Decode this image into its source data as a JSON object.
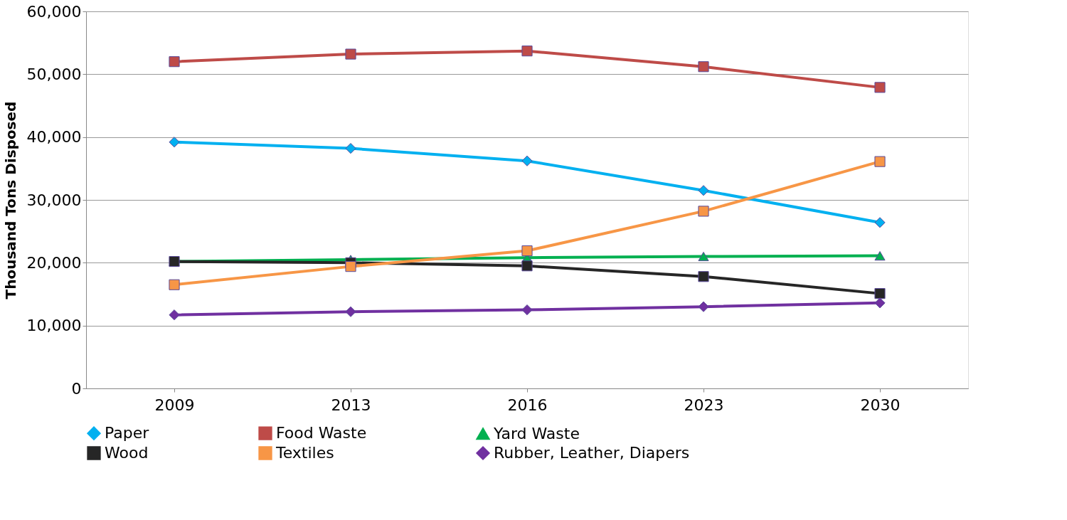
{
  "chart_data": {
    "type": "line",
    "ylabel": "Thousand Tons Disposed",
    "categories": [
      "2009",
      "2013",
      "2016",
      "2023",
      "2030"
    ],
    "series": [
      {
        "name": "Paper",
        "color": "#00b0f0",
        "marker": "diamond",
        "values": [
          39200,
          38200,
          36200,
          31500,
          26400
        ]
      },
      {
        "name": "Food Waste",
        "color": "#be4b48",
        "marker": "square",
        "values": [
          52000,
          53200,
          53700,
          51200,
          47900
        ]
      },
      {
        "name": "Yard Waste",
        "color": "#00b050",
        "marker": "triangle",
        "values": [
          20200,
          20500,
          20800,
          21000,
          21100
        ]
      },
      {
        "name": "Wood",
        "color": "#262626",
        "marker": "square",
        "values": [
          20200,
          20000,
          19500,
          17800,
          15100
        ]
      },
      {
        "name": "Textiles",
        "color": "#f79646",
        "marker": "square",
        "values": [
          16500,
          19400,
          21900,
          28200,
          36100
        ]
      },
      {
        "name": "Rubber, Leather, Diapers",
        "color": "#7030a0",
        "marker": "diamond",
        "values": [
          11700,
          12200,
          12500,
          13000,
          13600
        ]
      }
    ],
    "ylim": [
      0,
      60000
    ],
    "yticks": [
      0,
      {
        "value": 10000,
        "label": "10,000"
      },
      {
        "value": 20000,
        "label": "20,000"
      },
      {
        "value": 30000,
        "label": "30,000"
      },
      {
        "value": 40000,
        "label": "40,000"
      },
      {
        "value": 50000,
        "label": "50,000"
      },
      {
        "value": 60000,
        "label": "60,000"
      }
    ],
    "grid": "y",
    "legend": "bottom",
    "line_style": "solid"
  }
}
